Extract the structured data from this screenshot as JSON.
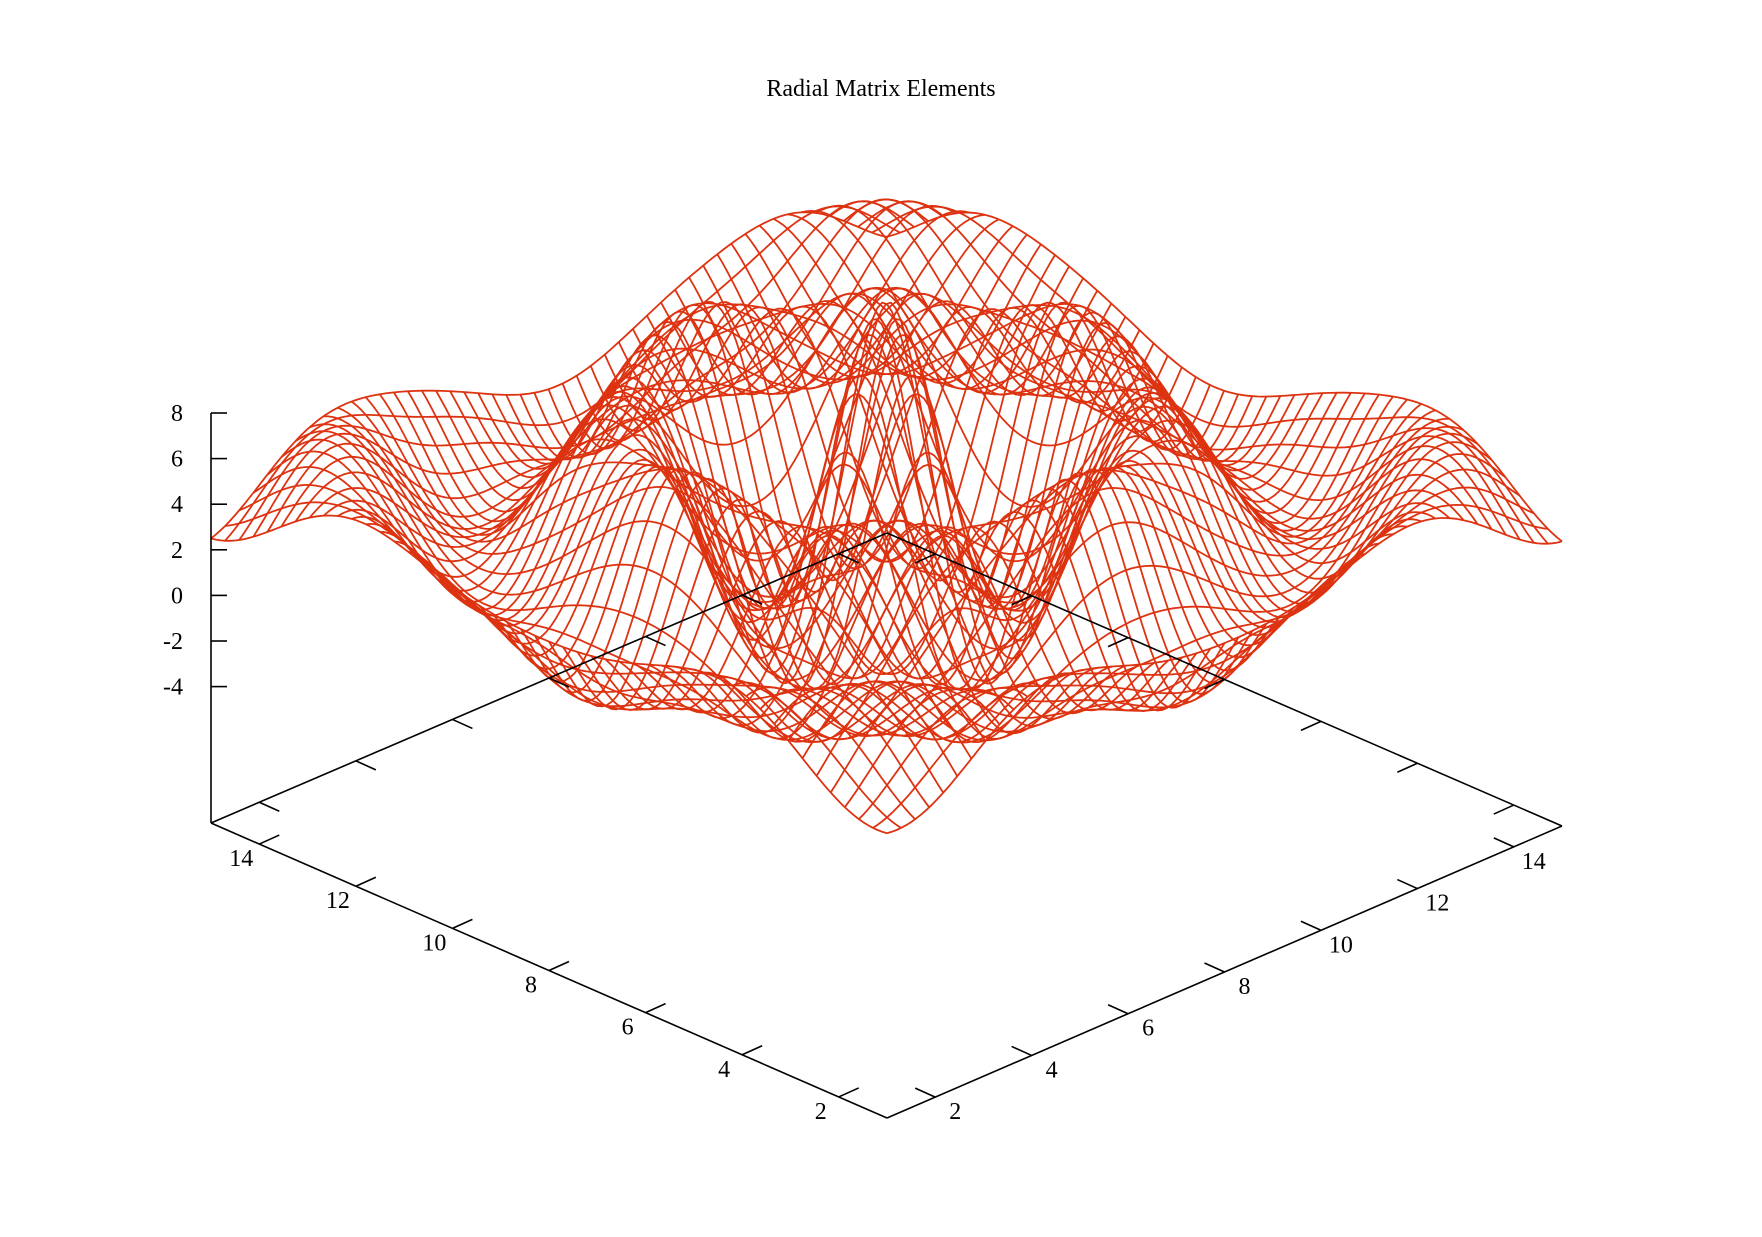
{
  "chart_data": {
    "type": "surface-3d",
    "title": "Radial Matrix Elements",
    "line_color": "#dd3311",
    "axis_color": "#000000",
    "z_ticks": [
      "8",
      "6",
      "4",
      "2",
      "0",
      "-2",
      "-4"
    ],
    "left_ticks": [
      "14",
      "12",
      "10",
      "8",
      "6",
      "4",
      "2"
    ],
    "right_ticks": [
      "2",
      "4",
      "6",
      "8",
      "10",
      "12",
      "14"
    ],
    "z_range": [
      -10,
      8
    ],
    "x_range": [
      1,
      15
    ],
    "y_range": [
      1,
      15
    ],
    "mesh": "hidden-line surface drawn as isolines along both horizontal axes; peak of about 7.5 at the centre, oscillating ridges decaying toward the edges, minimum near -9"
  }
}
